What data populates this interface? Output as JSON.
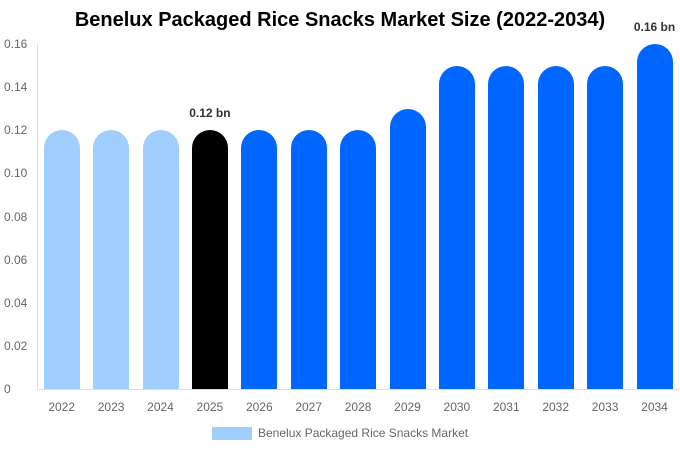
{
  "chart_data": {
    "type": "bar",
    "title": "Benelux Packaged Rice Snacks Market Size (2022-2034)",
    "xlabel": "",
    "ylabel": "",
    "categories": [
      "2022",
      "2023",
      "2024",
      "2025",
      "2026",
      "2027",
      "2028",
      "2029",
      "2030",
      "2031",
      "2032",
      "2033",
      "2034"
    ],
    "series": [
      {
        "name": "Benelux Packaged Rice Snacks Market",
        "values": [
          0.12,
          0.12,
          0.12,
          0.12,
          0.12,
          0.12,
          0.12,
          0.13,
          0.15,
          0.15,
          0.15,
          0.15,
          0.16
        ]
      }
    ],
    "bar_colors": [
      "#a0cfff",
      "#a0cfff",
      "#a0cfff",
      "#000000",
      "#0066ff",
      "#0066ff",
      "#0066ff",
      "#0066ff",
      "#0066ff",
      "#0066ff",
      "#0066ff",
      "#0066ff",
      "#0066ff"
    ],
    "ylim": [
      0,
      0.16
    ],
    "yticks": [
      "0",
      "0.02",
      "0.04",
      "0.06",
      "0.08",
      "0.10",
      "0.12",
      "0.14",
      "0.16"
    ],
    "annotations": [
      {
        "category": "2025",
        "text": "0.12 bn"
      },
      {
        "category": "2034",
        "text": "0.16 bn"
      }
    ],
    "grid": false,
    "legend_position": "bottom"
  },
  "legend": {
    "label": "Benelux Packaged Rice Snacks Market",
    "color": "#a0cfff"
  }
}
